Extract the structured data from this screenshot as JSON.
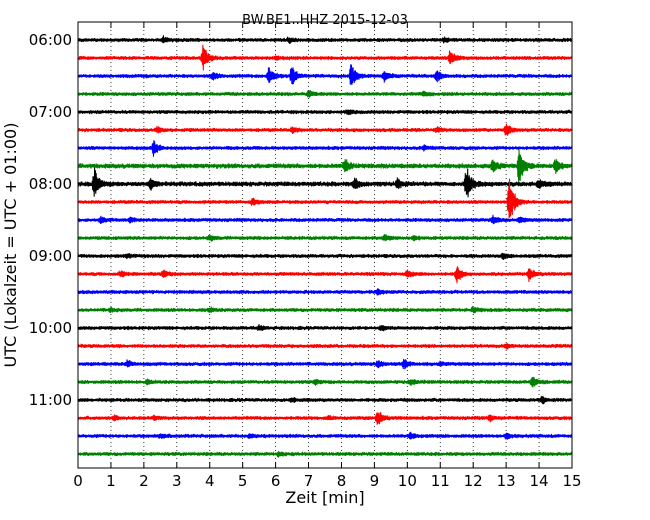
{
  "chart_data": {
    "type": "line",
    "title": "BW.BE1..HHZ 2015-12-03",
    "xlabel": "Zeit  [min]",
    "ylabel": "UTC (Lokalzeit = UTC + 01:00)",
    "xlim": [
      0,
      15
    ],
    "x_ticks": [
      0,
      1,
      2,
      3,
      4,
      5,
      6,
      7,
      8,
      9,
      10,
      11,
      12,
      13,
      14,
      15
    ],
    "y_tick_labels": [
      "06:00",
      "07:00",
      "08:00",
      "09:00",
      "10:00",
      "11:00"
    ],
    "grid": {
      "vertical": true,
      "style": "dotted"
    },
    "trace_interval_minutes": 15,
    "trace_colors": [
      "#000000",
      "#ff0000",
      "#0000ff",
      "#008000"
    ],
    "traces": [
      {
        "time": "06:00",
        "color": "#000000",
        "amplitude": 0.3,
        "events": [
          [
            2.6,
            0.5
          ],
          [
            6.4,
            0.5
          ],
          [
            11.1,
            0.4
          ]
        ]
      },
      {
        "time": "06:15",
        "color": "#ff0000",
        "amplitude": 0.3,
        "events": [
          [
            3.8,
            2.5
          ],
          [
            11.3,
            1.5
          ],
          [
            6.0,
            0.4
          ]
        ]
      },
      {
        "time": "06:30",
        "color": "#0000ff",
        "amplitude": 0.3,
        "events": [
          [
            5.8,
            2.0
          ],
          [
            6.5,
            2.0
          ],
          [
            8.3,
            2.8
          ],
          [
            9.3,
            1.0
          ],
          [
            10.9,
            1.1
          ],
          [
            4.1,
            0.7
          ]
        ]
      },
      {
        "time": "06:45",
        "color": "#008000",
        "amplitude": 0.3,
        "events": [
          [
            7.0,
            0.6
          ],
          [
            10.5,
            0.4
          ]
        ]
      },
      {
        "time": "07:00",
        "color": "#000000",
        "amplitude": 0.3,
        "events": [
          [
            8.2,
            0.4
          ]
        ]
      },
      {
        "time": "07:15",
        "color": "#ff0000",
        "amplitude": 0.3,
        "events": [
          [
            2.4,
            0.6
          ],
          [
            6.5,
            0.5
          ],
          [
            10.9,
            0.4
          ],
          [
            13.0,
            1.3
          ]
        ]
      },
      {
        "time": "07:30",
        "color": "#0000ff",
        "amplitude": 0.3,
        "events": [
          [
            2.3,
            1.6
          ],
          [
            10.5,
            0.4
          ]
        ]
      },
      {
        "time": "07:45",
        "color": "#008000",
        "amplitude": 0.4,
        "events": [
          [
            8.1,
            1.3
          ],
          [
            12.6,
            1.2
          ],
          [
            13.4,
            4.0
          ],
          [
            14.5,
            1.4
          ]
        ]
      },
      {
        "time": "08:00",
        "color": "#000000",
        "amplitude": 0.4,
        "events": [
          [
            0.5,
            3.0
          ],
          [
            2.2,
            1.0
          ],
          [
            8.4,
            1.1
          ],
          [
            9.7,
            0.9
          ],
          [
            11.8,
            3.4
          ],
          [
            14.0,
            1.0
          ]
        ]
      },
      {
        "time": "08:15",
        "color": "#ff0000",
        "amplitude": 0.3,
        "events": [
          [
            5.3,
            0.6
          ],
          [
            13.1,
            5.0
          ]
        ]
      },
      {
        "time": "08:30",
        "color": "#0000ff",
        "amplitude": 0.3,
        "events": [
          [
            0.7,
            0.7
          ],
          [
            1.6,
            0.5
          ],
          [
            12.6,
            0.8
          ],
          [
            13.4,
            0.6
          ]
        ]
      },
      {
        "time": "08:45",
        "color": "#008000",
        "amplitude": 0.3,
        "events": [
          [
            4.0,
            0.5
          ],
          [
            9.3,
            0.6
          ],
          [
            10.2,
            0.4
          ]
        ]
      },
      {
        "time": "09:00",
        "color": "#000000",
        "amplitude": 0.3,
        "events": [
          [
            1.5,
            0.3
          ],
          [
            12.9,
            0.6
          ]
        ]
      },
      {
        "time": "09:15",
        "color": "#ff0000",
        "amplitude": 0.3,
        "events": [
          [
            1.3,
            0.5
          ],
          [
            2.6,
            0.7
          ],
          [
            10.0,
            0.6
          ],
          [
            11.5,
            1.6
          ],
          [
            13.7,
            1.4
          ]
        ]
      },
      {
        "time": "09:30",
        "color": "#0000ff",
        "amplitude": 0.3,
        "events": [
          [
            9.1,
            0.5
          ]
        ]
      },
      {
        "time": "09:45",
        "color": "#008000",
        "amplitude": 0.3,
        "events": [
          [
            1.0,
            0.4
          ],
          [
            4.0,
            0.4
          ],
          [
            12.0,
            0.5
          ]
        ]
      },
      {
        "time": "10:00",
        "color": "#000000",
        "amplitude": 0.3,
        "events": [
          [
            5.5,
            0.5
          ],
          [
            9.2,
            0.4
          ]
        ]
      },
      {
        "time": "10:15",
        "color": "#ff0000",
        "amplitude": 0.3,
        "events": [
          [
            13.0,
            0.5
          ]
        ]
      },
      {
        "time": "10:30",
        "color": "#0000ff",
        "amplitude": 0.3,
        "events": [
          [
            1.5,
            0.6
          ],
          [
            9.1,
            0.7
          ],
          [
            9.9,
            0.9
          ],
          [
            11.0,
            0.4
          ]
        ]
      },
      {
        "time": "10:45",
        "color": "#008000",
        "amplitude": 0.3,
        "events": [
          [
            2.1,
            0.4
          ],
          [
            7.2,
            0.5
          ],
          [
            10.1,
            0.5
          ],
          [
            13.8,
            1.0
          ]
        ]
      },
      {
        "time": "11:00",
        "color": "#000000",
        "amplitude": 0.3,
        "events": [
          [
            6.5,
            0.4
          ],
          [
            14.1,
            0.6
          ]
        ]
      },
      {
        "time": "11:15",
        "color": "#ff0000",
        "amplitude": 0.3,
        "events": [
          [
            1.1,
            0.5
          ],
          [
            2.3,
            0.4
          ],
          [
            7.6,
            0.4
          ],
          [
            9.1,
            1.7
          ],
          [
            12.5,
            0.6
          ]
        ]
      },
      {
        "time": "11:30",
        "color": "#0000ff",
        "amplitude": 0.3,
        "events": [
          [
            2.5,
            0.4
          ],
          [
            5.2,
            0.3
          ],
          [
            10.1,
            0.6
          ],
          [
            13.0,
            0.5
          ]
        ]
      },
      {
        "time": "11:45",
        "color": "#008000",
        "amplitude": 0.3,
        "events": [
          [
            6.1,
            0.4
          ]
        ]
      }
    ]
  }
}
